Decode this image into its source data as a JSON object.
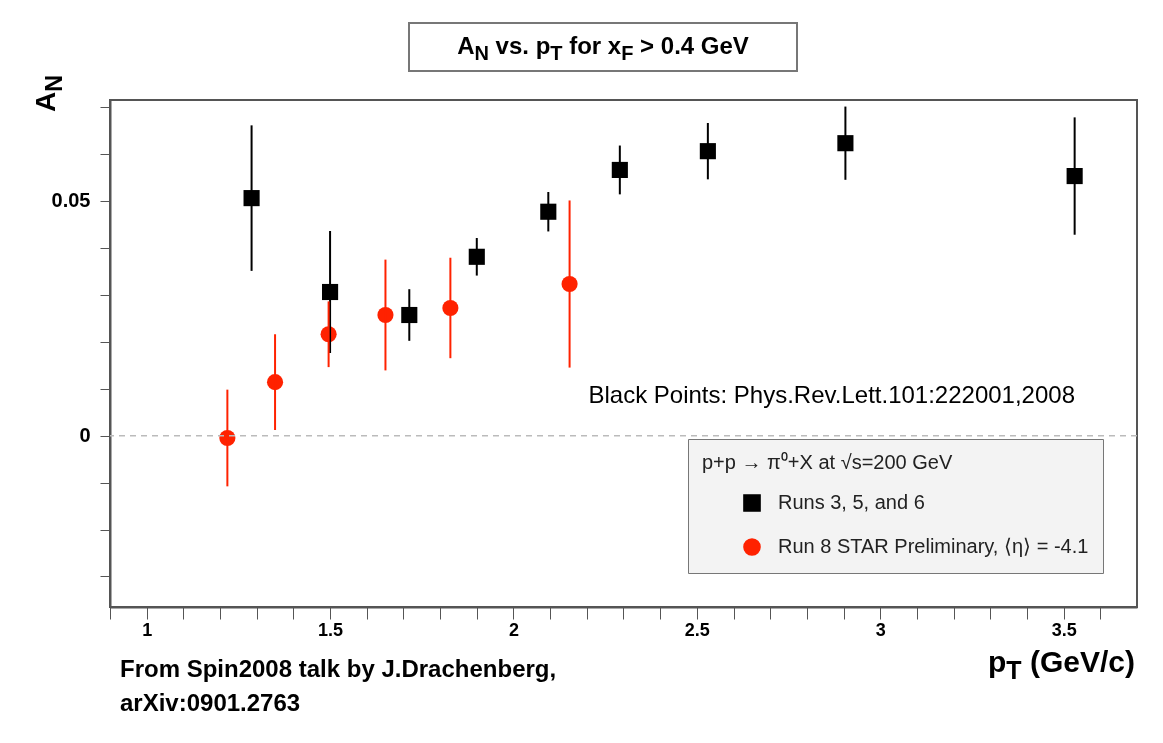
{
  "chart_data": {
    "type": "scatter",
    "title": "A$_{N}$ vs. p$_{T}$ for x$_{F}$ > 0.4 GeV",
    "xlabel": "p$_{T}$ (GeV/c)",
    "ylabel": "A$_{N}$",
    "legend_title": "p+p → π⁰+X at √s=200 GeV",
    "legend": "bottom right",
    "grid": false,
    "xlim": [
      0.9,
      3.7
    ],
    "ylim": [
      -0.0365,
      0.0715
    ],
    "xticks": [
      {
        "value": 0.9,
        "label": null
      },
      1,
      {
        "value": 1.1,
        "label": null
      },
      {
        "value": 1.2,
        "label": null
      },
      {
        "value": 1.3,
        "label": null
      },
      {
        "value": 1.4,
        "label": null
      },
      1.5,
      {
        "value": 1.6,
        "label": null
      },
      {
        "value": 1.7,
        "label": null
      },
      {
        "value": 1.8,
        "label": null
      },
      {
        "value": 1.9,
        "label": null
      },
      2,
      {
        "value": 2.1,
        "label": null
      },
      {
        "value": 2.2,
        "label": null
      },
      {
        "value": 2.3,
        "label": null
      },
      {
        "value": 2.4,
        "label": null
      },
      2.5,
      {
        "value": 2.6,
        "label": null
      },
      {
        "value": 2.7,
        "label": null
      },
      {
        "value": 2.8,
        "label": null
      },
      {
        "value": 2.9,
        "label": null
      },
      3,
      {
        "value": 3.1,
        "label": null
      },
      {
        "value": 3.2,
        "label": null
      },
      {
        "value": 3.3,
        "label": null
      },
      {
        "value": 3.4,
        "label": null
      },
      3.5,
      {
        "value": 3.6,
        "label": null
      }
    ],
    "yticks": [
      {
        "value": -0.03,
        "label": null
      },
      {
        "value": -0.02,
        "label": null
      },
      {
        "value": -0.01,
        "label": null
      },
      0,
      {
        "value": 0.01,
        "label": null
      },
      {
        "value": 0.02,
        "label": null
      },
      {
        "value": 0.03,
        "label": null
      },
      {
        "value": 0.04,
        "label": null
      },
      0.05,
      {
        "value": 0.06,
        "label": null
      },
      {
        "value": 0.07,
        "label": null
      }
    ],
    "ref_lines": [
      {
        "axis": "y",
        "value": 0,
        "color": "#bbbbbb",
        "line_style": "dashed"
      }
    ],
    "series": [
      {
        "name": "Runs 3, 5, and 6",
        "color": "#000000",
        "marker": "square",
        "x": [
          1.286,
          1.5,
          1.716,
          1.9,
          2.095,
          2.29,
          2.53,
          2.905,
          3.53
        ],
        "values": [
          0.0506,
          0.0306,
          0.0257,
          0.0381,
          0.0477,
          0.0566,
          0.0606,
          0.0623,
          0.0553
        ],
        "errors": [
          0.0155,
          0.013,
          0.0055,
          0.004,
          0.0042,
          0.0052,
          0.006,
          0.0078,
          0.0125
        ]
      },
      {
        "name": "Run 8 STAR Preliminary, ⟨η⟩ = -4.1",
        "color": "#ff2200",
        "marker": "circle",
        "x": [
          1.22,
          1.35,
          1.496,
          1.651,
          1.828,
          2.153
        ],
        "values": [
          -0.0005,
          0.0114,
          0.0216,
          0.0257,
          0.0272,
          0.0323
        ],
        "errors": [
          0.0103,
          0.0102,
          0.007,
          0.0118,
          0.0107,
          0.0178
        ]
      }
    ],
    "annotations": [
      "Black Points: Phys.Rev.Lett.101:222001,2008",
      "From Spin2008 talk by J.Drachenberg, arXiv:0901.2763"
    ]
  }
}
